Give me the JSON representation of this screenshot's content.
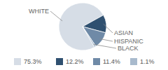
{
  "chart_data": {
    "type": "pie",
    "categories": [
      "WHITE",
      "ASIAN",
      "HISPANIC",
      "BLACK"
    ],
    "values": [
      75.3,
      12.2,
      11.4,
      1.1
    ],
    "value_labels": [
      "75.3%",
      "12.2%",
      "11.4%",
      "1.1%"
    ],
    "colors": [
      "#d6dde6",
      "#2f5070",
      "#6f8aa7",
      "#a8bacd"
    ]
  }
}
